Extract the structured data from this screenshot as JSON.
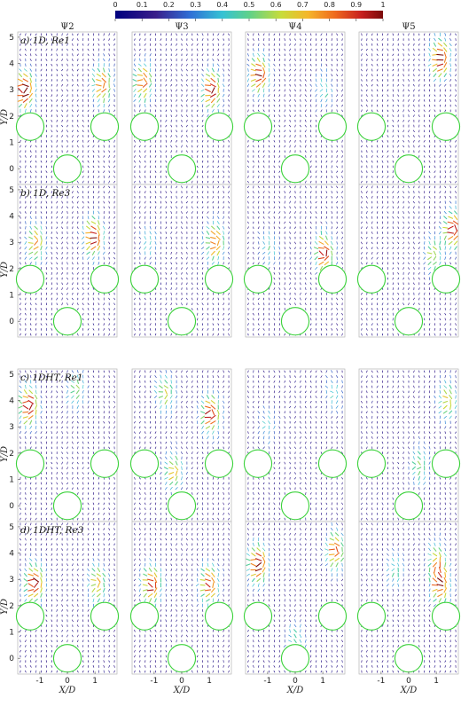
{
  "colorbar": {
    "min": 0,
    "max": 1,
    "ticks": [
      "0",
      "0.1",
      "0.2",
      "0.3",
      "0.4",
      "0.5",
      "0.6",
      "0.7",
      "0.8",
      "0.9",
      "1"
    ]
  },
  "mode_labels": [
    "Ψ2",
    "Ψ3",
    "Ψ4",
    "Ψ5"
  ],
  "rows": [
    {
      "label": "a) 1D, Re1"
    },
    {
      "label": "b) 1D, Re3"
    },
    {
      "label": "c) 1DHT, Re1"
    },
    {
      "label": "d) 1DHT, Re3"
    }
  ],
  "axes": {
    "xlabel": "X/D",
    "ylabel": "Y/D",
    "xticks": [
      "-1",
      "0",
      "1"
    ],
    "yticks": [
      "0",
      "1",
      "2",
      "3",
      "4",
      "5"
    ]
  },
  "cylinders_xy": [
    [
      -1.35,
      1.6
    ],
    [
      1.35,
      1.6
    ],
    [
      0,
      0
    ]
  ],
  "cylinder_color": "#3bd23b",
  "hotspots": [
    [
      [
        -1.55,
        3.0,
        0.95
      ],
      [
        1.25,
        3.2,
        0.75
      ]
    ],
    [
      [
        -1.4,
        3.3,
        0.75
      ],
      [
        1.1,
        3.0,
        0.85
      ]
    ],
    [
      [
        -1.3,
        3.6,
        0.85
      ],
      [
        1.05,
        3.0,
        0.35
      ]
    ],
    [
      [
        1.15,
        4.2,
        0.9
      ]
    ],
    [
      [
        -1.15,
        3.0,
        0.65
      ],
      [
        0.95,
        3.2,
        0.9
      ]
    ],
    [
      [
        1.2,
        3.0,
        0.75
      ],
      [
        -1.2,
        3.0,
        0.3
      ]
    ],
    [
      [
        1.05,
        2.6,
        0.85
      ],
      [
        -0.95,
        2.8,
        0.35
      ]
    ],
    [
      [
        1.6,
        3.5,
        0.85
      ],
      [
        0.9,
        2.5,
        0.5
      ]
    ],
    [
      [
        -1.4,
        3.8,
        0.9
      ],
      [
        0.3,
        4.4,
        0.45
      ]
    ],
    [
      [
        1.05,
        3.5,
        0.85
      ],
      [
        -0.6,
        4.3,
        0.55
      ],
      [
        -0.3,
        1.3,
        0.6
      ]
    ],
    [
      [
        1.4,
        4.3,
        0.3
      ],
      [
        -1.0,
        3.0,
        0.3
      ]
    ],
    [
      [
        1.4,
        4.0,
        0.55
      ],
      [
        0.4,
        1.5,
        0.45
      ]
    ],
    [
      [
        -1.2,
        2.85,
        0.9
      ],
      [
        1.1,
        2.85,
        0.6
      ]
    ],
    [
      [
        -1.1,
        2.8,
        0.85
      ],
      [
        1.0,
        2.8,
        0.8
      ]
    ],
    [
      [
        -1.35,
        3.6,
        0.9
      ],
      [
        1.45,
        4.1,
        0.75
      ],
      [
        0.0,
        0.6,
        0.4
      ]
    ],
    [
      [
        1.15,
        2.8,
        0.8
      ],
      [
        1.0,
        3.8,
        0.5
      ],
      [
        -0.5,
        3.4,
        0.35
      ]
    ]
  ]
}
